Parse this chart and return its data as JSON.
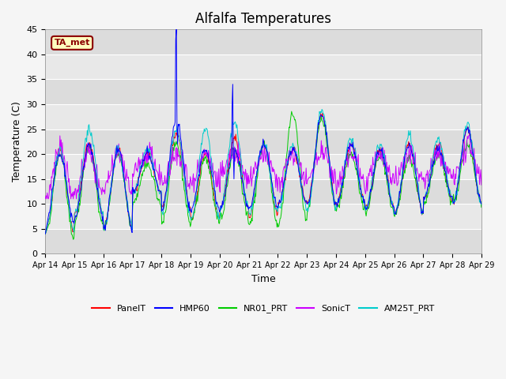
{
  "title": "Alfalfa Temperatures",
  "xlabel": "Time",
  "ylabel": "Temperature (C)",
  "ylim": [
    0,
    45
  ],
  "annotation_text": "TA_met",
  "annotation_color": "#8B0000",
  "annotation_bg": "#FFFFC0",
  "x_tick_labels": [
    "Apr 14",
    "Apr 15",
    "Apr 16",
    "Apr 17",
    "Apr 18",
    "Apr 19",
    "Apr 20",
    "Apr 21",
    "Apr 22",
    "Apr 23",
    "Apr 24",
    "Apr 25",
    "Apr 26",
    "Apr 27",
    "Apr 28",
    "Apr 29"
  ],
  "series_colors": {
    "PanelT": "#FF0000",
    "HMP60": "#0000FF",
    "NR01_PRT": "#00CC00",
    "SonicT": "#CC00FF",
    "AM25T_PRT": "#00CCCC"
  },
  "plot_bg_color": "#E8E8E8",
  "band_colors": [
    "#DCDCDC",
    "#E8E8E8"
  ],
  "grid_color": "#FFFFFF",
  "title_fontsize": 12,
  "fig_facecolor": "#F5F5F5"
}
